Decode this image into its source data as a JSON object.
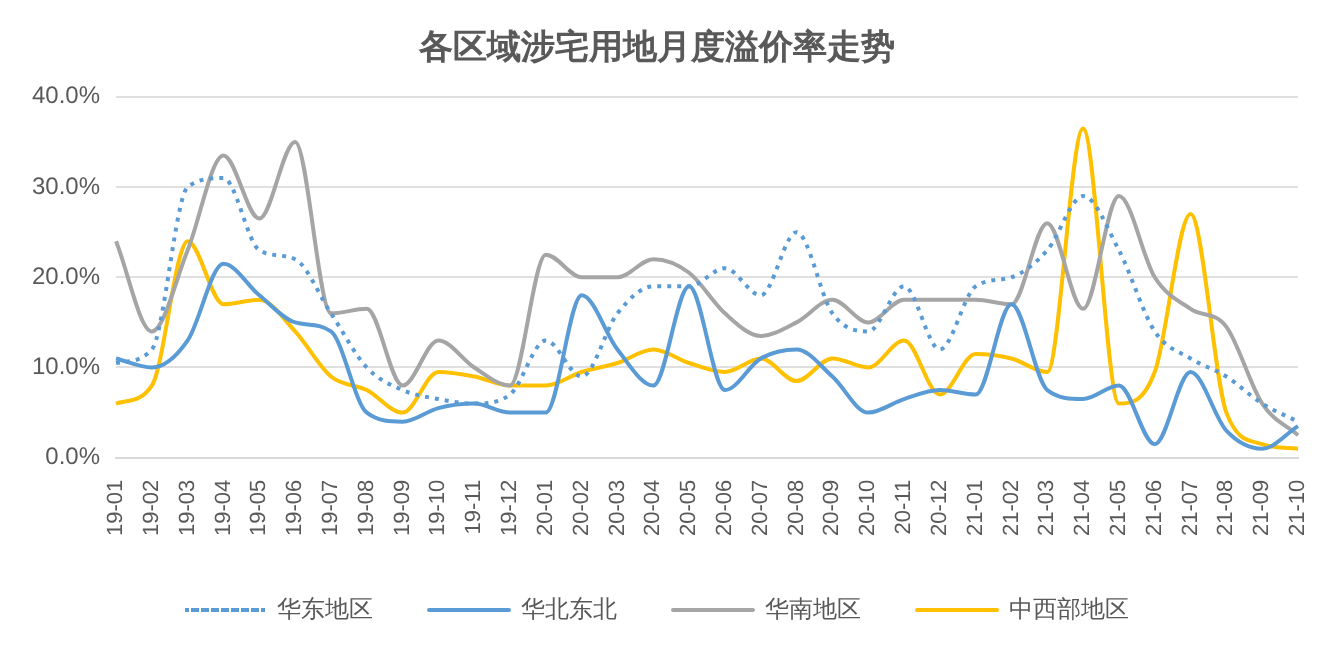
{
  "chart_data": {
    "type": "line",
    "title": "各区域涉宅用地月度溢价率走势",
    "categories": [
      "19-01",
      "19-02",
      "19-03",
      "19-04",
      "19-05",
      "19-06",
      "19-07",
      "19-08",
      "19-09",
      "19-10",
      "19-11",
      "19-12",
      "20-01",
      "20-02",
      "20-03",
      "20-04",
      "20-05",
      "20-06",
      "20-07",
      "20-08",
      "20-09",
      "20-10",
      "20-11",
      "20-12",
      "21-01",
      "21-02",
      "21-03",
      "21-04",
      "21-05",
      "21-06",
      "21-07",
      "21-08",
      "21-09",
      "21-10"
    ],
    "series": [
      {
        "name": "华东地区",
        "color": "#5b9bd5",
        "line_style": "dotted",
        "values": [
          10.5,
          12,
          30,
          31,
          23,
          22,
          16,
          10,
          7.5,
          6.5,
          6,
          7,
          13,
          9,
          16,
          19,
          19,
          21,
          18,
          25,
          16,
          14,
          19,
          12,
          19,
          20,
          23,
          29,
          23,
          14,
          11,
          9,
          6,
          4
        ]
      },
      {
        "name": "华北东北",
        "color": "#5b9bd5",
        "line_style": "solid",
        "values": [
          11,
          10,
          13,
          21.5,
          18,
          15,
          14,
          5,
          4,
          5.5,
          6,
          5,
          5,
          18,
          12,
          8,
          19,
          7.5,
          11,
          12,
          9,
          5,
          6.5,
          7.5,
          7,
          17,
          7.5,
          6.5,
          8,
          1.5,
          9.5,
          3,
          1,
          3.5
        ]
      },
      {
        "name": "华南地区",
        "color": "#a5a5a5",
        "line_style": "solid",
        "values": [
          24,
          14,
          23,
          33.5,
          26.5,
          35,
          16,
          16.5,
          8,
          13,
          10,
          8,
          22.5,
          20,
          20,
          22,
          20.5,
          16,
          13.5,
          15,
          17.5,
          15,
          17.5,
          17.5,
          17.5,
          17,
          26,
          16.5,
          29,
          20,
          16.5,
          14.5,
          6,
          2.5
        ]
      },
      {
        "name": "中西部地区",
        "color": "#ffc000",
        "line_style": "solid",
        "values": [
          6,
          8,
          24,
          17,
          17.5,
          14,
          9,
          7.5,
          5,
          9.5,
          9,
          8,
          8,
          9.5,
          10.5,
          12,
          10.5,
          9.5,
          11,
          8.5,
          11,
          10,
          13,
          7,
          11.5,
          11,
          9.5,
          36.5,
          6,
          9.5,
          27,
          5,
          1.5,
          1
        ]
      }
    ],
    "ylim": [
      0,
      40
    ],
    "yticks": [
      {
        "value": 0,
        "label": "0.0%"
      },
      {
        "value": 10,
        "label": "10.0%"
      },
      {
        "value": 20,
        "label": "20.0%"
      },
      {
        "value": 30,
        "label": "30.0%"
      },
      {
        "value": 40,
        "label": "40.0%"
      }
    ],
    "grid": "y",
    "legend": "bottom",
    "marker": "none"
  }
}
